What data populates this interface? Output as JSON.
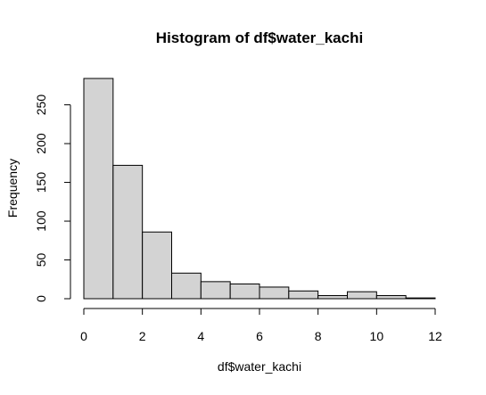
{
  "chart_data": {
    "type": "bar",
    "title": "Histogram of df$water_kachi",
    "xlabel": "df$water_kachi",
    "ylabel": "Frequency",
    "bins": [
      [
        0,
        1
      ],
      [
        1,
        2
      ],
      [
        2,
        3
      ],
      [
        3,
        4
      ],
      [
        4,
        5
      ],
      [
        5,
        6
      ],
      [
        6,
        7
      ],
      [
        7,
        8
      ],
      [
        8,
        9
      ],
      [
        9,
        10
      ],
      [
        10,
        11
      ],
      [
        11,
        12
      ]
    ],
    "values": [
      284,
      172,
      86,
      33,
      22,
      19,
      15,
      10,
      4,
      9,
      4,
      1
    ],
    "xlim": [
      0,
      12
    ],
    "ylim": [
      0,
      284
    ],
    "x_ticks": [
      "0",
      "2",
      "4",
      "6",
      "8",
      "10",
      "12"
    ],
    "y_ticks": [
      "0",
      "50",
      "100",
      "150",
      "200",
      "250"
    ],
    "bar_fill": "#d3d3d3",
    "grid": false,
    "legend": "none"
  }
}
